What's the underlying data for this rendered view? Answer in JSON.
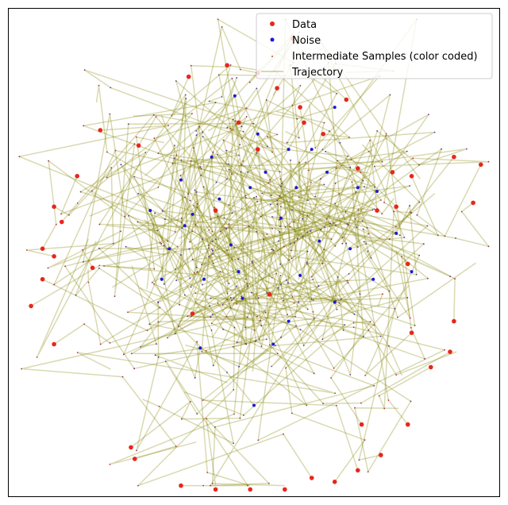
{
  "chart_data": {
    "type": "scatter",
    "title": "",
    "xlabel": "",
    "ylabel": "",
    "xlim": [
      -3.2,
      3.2
    ],
    "ylim": [
      -3.2,
      3.2
    ],
    "grid": false,
    "axes_ticks": false,
    "legend_position": "top-right",
    "colors": {
      "data": "#e8261c",
      "noise": "#1a1ad6",
      "intermediate": "#b5563f",
      "trajectory": "#808000"
    },
    "series": [
      {
        "name": "Data",
        "kind": "scatter",
        "points": [
          [
            -1.5,
            1.4
          ],
          [
            -2.3,
            1.0
          ],
          [
            -2.6,
            0.6
          ],
          [
            -2.75,
            0.05
          ],
          [
            -2.9,
            -0.7
          ],
          [
            -2.75,
            -0.35
          ],
          [
            -2.6,
            -1.2
          ],
          [
            -1.6,
            -2.55
          ],
          [
            -0.95,
            -3.05
          ],
          [
            -0.5,
            -3.1
          ],
          [
            -0.05,
            -3.1
          ],
          [
            0.4,
            -3.1
          ],
          [
            0.75,
            -2.95
          ],
          [
            1.05,
            -3.0
          ],
          [
            1.35,
            -2.85
          ],
          [
            1.65,
            -2.65
          ],
          [
            2.0,
            -2.25
          ],
          [
            2.3,
            -1.5
          ],
          [
            2.6,
            -0.9
          ],
          [
            2.85,
            0.65
          ],
          [
            2.95,
            1.15
          ],
          [
            2.6,
            1.25
          ],
          [
            2.05,
            1.0
          ],
          [
            1.85,
            0.6
          ],
          [
            1.35,
            1.1
          ],
          [
            0.6,
            1.9
          ],
          [
            0.3,
            2.15
          ],
          [
            0.05,
            2.35
          ],
          [
            -0.35,
            2.45
          ],
          [
            -0.85,
            2.3
          ],
          [
            -2.5,
            0.4
          ],
          [
            1.8,
            1.05
          ],
          [
            1.2,
            2.0
          ],
          [
            0.5,
            2.8
          ],
          [
            0.65,
            1.7
          ],
          [
            -2.6,
            -0.05
          ],
          [
            1.4,
            -2.25
          ],
          [
            2.05,
            -1.05
          ],
          [
            -0.2,
            1.7
          ],
          [
            0.05,
            1.35
          ],
          [
            1.6,
            0.55
          ],
          [
            -0.5,
            0.55
          ],
          [
            2.0,
            -0.15
          ],
          [
            -0.8,
            -0.8
          ],
          [
            -1.55,
            -2.7
          ],
          [
            0.2,
            -0.55
          ],
          [
            -2.1,
            -0.2
          ],
          [
            2.55,
            -1.3
          ],
          [
            -2.0,
            1.6
          ],
          [
            0.9,
            1.55
          ]
        ]
      },
      {
        "name": "Noise",
        "kind": "scatter",
        "points": [
          [
            -0.25,
            2.05
          ],
          [
            0.05,
            1.55
          ],
          [
            0.45,
            1.35
          ],
          [
            0.95,
            1.05
          ],
          [
            1.35,
            0.85
          ],
          [
            1.85,
            0.25
          ],
          [
            1.55,
            -0.35
          ],
          [
            1.05,
            -0.65
          ],
          [
            0.45,
            -0.9
          ],
          [
            -0.15,
            -0.6
          ],
          [
            -0.65,
            -0.35
          ],
          [
            -1.1,
            0.05
          ],
          [
            -1.35,
            0.55
          ],
          [
            -0.95,
            0.95
          ],
          [
            -0.55,
            1.25
          ],
          [
            -0.05,
            0.85
          ],
          [
            0.35,
            0.45
          ],
          [
            0.85,
            0.15
          ],
          [
            1.25,
            0.05
          ],
          [
            0.6,
            -0.3
          ],
          [
            -0.3,
            0.1
          ],
          [
            -0.8,
            0.5
          ],
          [
            0.15,
            1.05
          ],
          [
            -0.45,
            0.7
          ],
          [
            1.6,
            0.8
          ],
          [
            0.25,
            -1.2
          ],
          [
            0.0,
            -2.0
          ],
          [
            -0.7,
            -1.25
          ],
          [
            -1.2,
            -0.35
          ],
          [
            1.05,
            1.9
          ],
          [
            0.75,
            1.35
          ],
          [
            2.05,
            -0.25
          ],
          [
            -0.2,
            -0.25
          ],
          [
            0.55,
            0.85
          ],
          [
            -0.9,
            0.35
          ]
        ]
      },
      {
        "name": "Intermediate Samples (color coded)",
        "kind": "scatter_small"
      },
      {
        "name": "Trajectory",
        "kind": "line"
      }
    ]
  }
}
